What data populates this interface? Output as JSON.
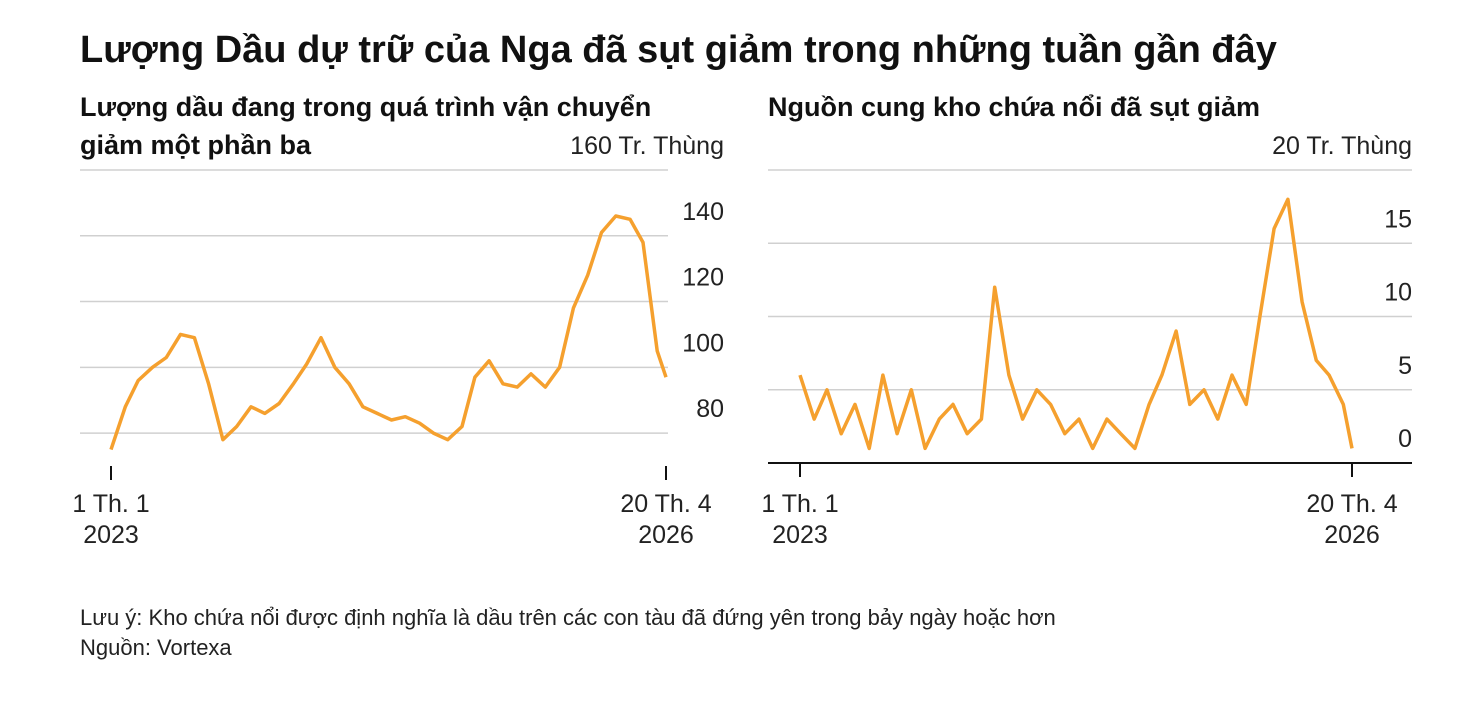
{
  "header": {
    "title": "Lượng Dầu dự trữ của Nga đã sụt giảm trong những tuần gần đây"
  },
  "chart_data": [
    {
      "type": "line",
      "title": [
        "Lượng dầu đang trong quá trình vận chuyển",
        "giảm một phần ba"
      ],
      "x": [
        "2023-01-01",
        "2023-02-01",
        "2023-03-01",
        "2023-04-01",
        "2023-05-01",
        "2023-06-01",
        "2023-07-01",
        "2023-08-01",
        "2023-09-01",
        "2023-10-01",
        "2023-11-01",
        "2023-12-01",
        "2024-01-01",
        "2024-02-01",
        "2024-03-01",
        "2024-04-01",
        "2024-05-01",
        "2024-06-01",
        "2024-07-01",
        "2024-08-01",
        "2024-09-01",
        "2024-10-01",
        "2024-11-01",
        "2024-12-01",
        "2025-01-01",
        "2025-02-01",
        "2025-03-01",
        "2025-04-01",
        "2025-05-01",
        "2025-06-01",
        "2025-07-01",
        "2025-08-01",
        "2025-09-01",
        "2025-10-01",
        "2025-11-01",
        "2025-12-01",
        "2026-01-01",
        "2026-02-01",
        "2026-03-01",
        "2026-04-01",
        "2026-04-20"
      ],
      "series": [
        {
          "color": "#f5a02e",
          "values": [
            75,
            88,
            96,
            100,
            103,
            110,
            109,
            95,
            78,
            82,
            88,
            86,
            89,
            95,
            101,
            109,
            100,
            95,
            88,
            86,
            84,
            85,
            83,
            80,
            78,
            82,
            97,
            102,
            95,
            94,
            98,
            94,
            100,
            118,
            128,
            141,
            146,
            145,
            138,
            105,
            97
          ]
        }
      ],
      "xlim": [
        "2023-01-01",
        "2026-04-20"
      ],
      "xticks": [
        {
          "value": "2023-01-01",
          "label": [
            "1 Th. 1",
            "2023"
          ]
        },
        {
          "value": "2026-04-20",
          "label": [
            "20 Th. 4",
            "2026"
          ]
        }
      ],
      "ylim": [
        70,
        160
      ],
      "yticks": [
        80,
        100,
        120,
        140,
        {
          "value": 160,
          "label": "160 Tr. Thùng"
        }
      ],
      "grid": true
    },
    {
      "type": "line",
      "title": [
        "Nguồn cung kho chứa nổi đã sụt giảm"
      ],
      "x": [
        "2023-01-01",
        "2023-02-01",
        "2023-03-01",
        "2023-04-01",
        "2023-05-01",
        "2023-06-01",
        "2023-07-01",
        "2023-08-01",
        "2023-09-01",
        "2023-10-01",
        "2023-11-01",
        "2023-12-01",
        "2024-01-01",
        "2024-02-01",
        "2024-03-01",
        "2024-04-01",
        "2024-05-01",
        "2024-06-01",
        "2024-07-01",
        "2024-08-01",
        "2024-09-01",
        "2024-10-01",
        "2024-11-01",
        "2024-12-01",
        "2025-01-01",
        "2025-02-01",
        "2025-03-01",
        "2025-04-01",
        "2025-05-01",
        "2025-06-01",
        "2025-07-01",
        "2025-08-01",
        "2025-09-01",
        "2025-10-01",
        "2025-11-01",
        "2025-12-01",
        "2026-01-01",
        "2026-02-01",
        "2026-03-01",
        "2026-04-01",
        "2026-04-20"
      ],
      "series": [
        {
          "color": "#f5a02e",
          "values": [
            6,
            3,
            5,
            2,
            4,
            1,
            6,
            2,
            5,
            1,
            3,
            4,
            2,
            3,
            12,
            6,
            3,
            5,
            4,
            2,
            3,
            1,
            3,
            2,
            1,
            4,
            6,
            9,
            4,
            5,
            3,
            6,
            4,
            10,
            16,
            18,
            11,
            7,
            6,
            4,
            1
          ]
        }
      ],
      "xlim": [
        "2023-01-01",
        "2026-04-20"
      ],
      "xticks": [
        {
          "value": "2023-01-01",
          "label": [
            "1 Th. 1",
            "2023"
          ]
        },
        {
          "value": "2026-04-20",
          "label": [
            "20 Th. 4",
            "2026"
          ]
        }
      ],
      "ylim": [
        0,
        20
      ],
      "yticks": [
        0,
        5,
        10,
        15,
        {
          "value": 20,
          "label": "20 Tr. Thùng"
        }
      ],
      "grid": true
    }
  ],
  "footer": {
    "note": "Lưu ý: Kho chứa nổi được định nghĩa là dầu trên các con tàu đã đứng yên trong bảy ngày hoặc hơn",
    "source": "Nguồn: Vortexa"
  }
}
